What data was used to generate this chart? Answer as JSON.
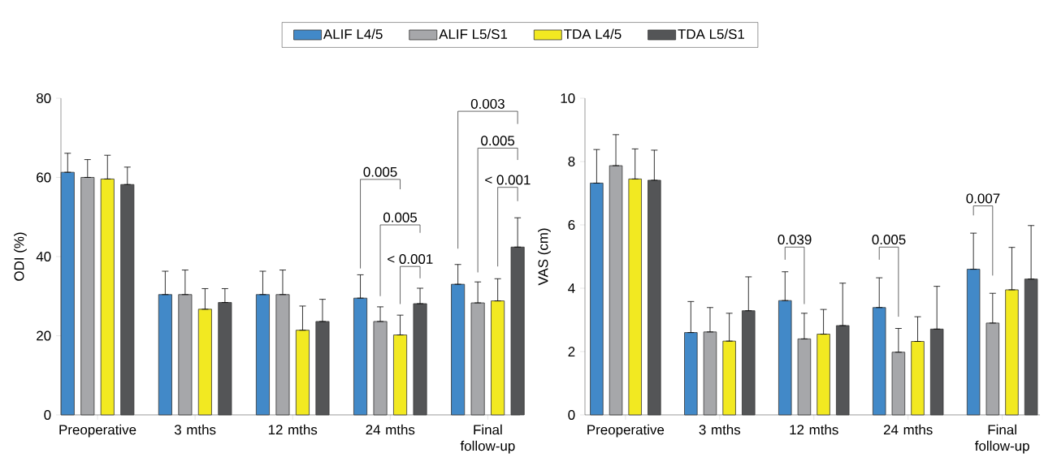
{
  "chart_data": [
    {
      "type": "bar",
      "ylabel": "ODI (%)",
      "categories": [
        "Preoperative",
        "3 mths",
        "12 mths",
        "24 mths",
        "Final follow-up"
      ],
      "ylim": [
        0,
        80
      ],
      "yticks": [
        0,
        20,
        40,
        60,
        80
      ],
      "legend": "top",
      "grid": false,
      "series": [
        {
          "name": "ALIF L4/5",
          "color": "#4289c8",
          "values": [
            61.3,
            30.4,
            30.4,
            29.5,
            33.0
          ],
          "errors": [
            [
              61.3,
              66.1
            ],
            [
              30.4,
              36.3
            ],
            [
              30.4,
              36.3
            ],
            [
              29.5,
              35.4
            ],
            [
              33.0,
              38.0
            ]
          ]
        },
        {
          "name": "ALIF L5/S1",
          "color": "#a6a7aa",
          "values": [
            60.0,
            30.4,
            30.4,
            23.6,
            28.3
          ],
          "errors": [
            [
              60.0,
              64.5
            ],
            [
              30.4,
              36.6
            ],
            [
              30.4,
              36.6
            ],
            [
              23.6,
              27.3
            ],
            [
              28.3,
              33.6
            ]
          ]
        },
        {
          "name": "TDA L4/5",
          "color": "#f2e921",
          "values": [
            59.6,
            26.7,
            21.4,
            20.2,
            28.8
          ],
          "errors": [
            [
              59.6,
              65.6
            ],
            [
              26.7,
              31.9
            ],
            [
              21.4,
              27.5
            ],
            [
              20.2,
              25.2
            ],
            [
              28.8,
              34.4
            ]
          ]
        },
        {
          "name": "TDA L5/S1",
          "color": "#545557",
          "values": [
            58.2,
            28.4,
            23.6,
            28.1,
            42.4
          ],
          "errors": [
            [
              58.2,
              62.6
            ],
            [
              28.4,
              31.9
            ],
            [
              23.6,
              29.2
            ],
            [
              28.1,
              32.0
            ],
            [
              42.4,
              49.8
            ]
          ]
        }
      ],
      "annotations": [
        "0.005",
        "0.005",
        "< 0.001",
        "0.003",
        "0.005",
        "< 0.001"
      ]
    },
    {
      "type": "bar",
      "ylabel": "VAS (cm)",
      "categories": [
        "Preoperative",
        "3 mths",
        "12 mths",
        "24 mths",
        "Final follow-up"
      ],
      "ylim": [
        0,
        10
      ],
      "yticks": [
        0,
        2,
        4,
        6,
        8,
        10
      ],
      "legend": false,
      "grid": false,
      "series": [
        {
          "color": "#4289c8",
          "values": [
            7.32,
            2.6,
            3.61,
            3.39,
            4.6
          ],
          "errors": [
            [
              7.32,
              8.38
            ],
            [
              2.6,
              3.58
            ],
            [
              3.61,
              4.52
            ],
            [
              3.39,
              4.33
            ],
            [
              4.6,
              5.74
            ]
          ]
        },
        {
          "color": "#a6a7aa",
          "values": [
            7.87,
            2.62,
            2.4,
            1.98,
            2.9
          ],
          "errors": [
            [
              7.87,
              8.85
            ],
            [
              2.62,
              3.39
            ],
            [
              2.4,
              3.21
            ],
            [
              1.98,
              2.73
            ],
            [
              2.9,
              3.84
            ]
          ]
        },
        {
          "color": "#f2e921",
          "values": [
            7.45,
            2.33,
            2.55,
            2.32,
            3.95
          ],
          "errors": [
            [
              7.45,
              8.4
            ],
            [
              2.33,
              3.21
            ],
            [
              2.55,
              3.33
            ],
            [
              2.32,
              3.1
            ],
            [
              3.95,
              5.29
            ]
          ]
        },
        {
          "color": "#545557",
          "values": [
            7.41,
            3.29,
            2.82,
            2.71,
            4.29
          ],
          "errors": [
            [
              7.41,
              8.36
            ],
            [
              3.29,
              4.36
            ],
            [
              2.82,
              4.16
            ],
            [
              2.71,
              4.06
            ],
            [
              4.29,
              5.98
            ]
          ]
        }
      ],
      "annotations": [
        "0.039",
        "0.005",
        "0.007"
      ]
    }
  ]
}
